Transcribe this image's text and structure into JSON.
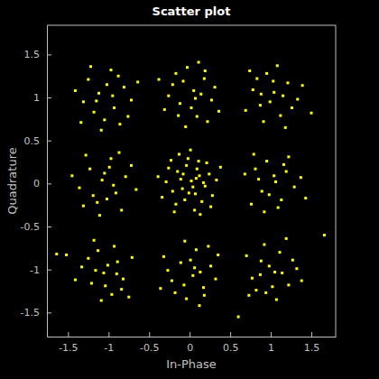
{
  "chart_data": {
    "type": "scatter",
    "title": "Scatter plot",
    "x_label": "In-Phase",
    "y_label": "Quadrature",
    "color": "#ffff00",
    "marker": "square",
    "xlim": [
      -1.76,
      1.8
    ],
    "ylim": [
      -1.78,
      1.84
    ],
    "xticks": [
      -1.5,
      -1,
      -0.5,
      0,
      0.5,
      1,
      1.5
    ],
    "yticks": [
      -1.5,
      -1,
      -0.5,
      0,
      0.5,
      1,
      1.5
    ],
    "grid": false,
    "x": [
      -1.12,
      -0.93,
      -1.25,
      -0.81,
      -1.05,
      -1.31,
      -0.97,
      -0.72,
      -1.18,
      -1.02,
      -0.88,
      -1.41,
      -1.09,
      -0.76,
      -1.22,
      -0.95,
      -1.34,
      -0.64,
      -1.15,
      -0.86,
      0.05,
      -0.12,
      0.18,
      -0.21,
      0.09,
      -0.03,
      0.27,
      -0.31,
      0.14,
      -0.08,
      0.22,
      -0.17,
      0.31,
      0.02,
      -0.26,
      0.11,
      -0.05,
      0.36,
      -0.38,
      0.07,
      0.19,
      -0.14,
      1.04,
      0.87,
      1.21,
      0.78,
      1.12,
      0.95,
      1.33,
      0.69,
      1.08,
      0.91,
      1.26,
      0.83,
      1.15,
      0.99,
      1.39,
      0.74,
      1.18,
      1.03,
      0.88,
      -1.08,
      -0.91,
      -1.23,
      -0.79,
      -1.14,
      -0.97,
      -1.36,
      -0.84,
      -1.05,
      -1.19,
      -0.72,
      -1.28,
      -0.94,
      -1.11,
      -0.87,
      -1.45,
      -1.02,
      -0.66,
      -1.31,
      -0.99,
      0.02,
      -0.09,
      0.12,
      -0.15,
      0.07,
      -0.04,
      0.19,
      -0.21,
      0.09,
      -0.11,
      0.24,
      -0.06,
      0.15,
      -0.26,
      0.04,
      -0.17,
      0.28,
      -0.02,
      0.11,
      -0.29,
      0.21,
      -0.08,
      0.33,
      -0.34,
      0.06,
      -0.13,
      0.17,
      -0.01,
      0.26,
      -0.23,
      0.38,
      -0.39,
      0.01,
      0.13,
      -0.19,
      0.08,
      1.06,
      0.89,
      1.19,
      0.81,
      1.13,
      0.95,
      1.29,
      0.76,
      1.04,
      1.22,
      0.92,
      1.37,
      0.85,
      1.09,
      0.68,
      1.16,
      0.98,
      1.43,
      0.79,
      -1.06,
      -0.89,
      -1.21,
      -0.82,
      -1.13,
      -0.96,
      -1.33,
      -0.71,
      -1.09,
      -0.93,
      -1.25,
      -0.84,
      -1.16,
      -1.01,
      -1.41,
      -0.75,
      -1.18,
      -1.04,
      -0.9,
      -1.52,
      0.04,
      -0.11,
      0.17,
      -0.22,
      0.08,
      -0.04,
      0.26,
      -0.32,
      0.13,
      -0.07,
      0.23,
      -0.18,
      0.32,
      0.01,
      -0.27,
      0.12,
      -0.06,
      0.35,
      -0.36,
      0.06,
      0.18,
      1.05,
      0.88,
      1.22,
      0.77,
      1.11,
      0.94,
      1.32,
      0.7,
      1.07,
      0.92,
      1.27,
      0.82,
      1.14,
      0.98,
      1.38,
      0.73,
      1.19,
      1.02,
      0.87,
      1.66,
      -1.64,
      1.5,
      0.6
    ],
    "values": [
      1.05,
      0.88,
      1.21,
      1.12,
      0.74,
      0.95,
      1.32,
      0.97,
      0.83,
      1.15,
      1.25,
      1.08,
      0.62,
      0.78,
      1.36,
      1.02,
      0.71,
      1.18,
      0.96,
      0.69,
      1.08,
      0.93,
      1.22,
      1.15,
      0.78,
      1.35,
      0.97,
      0.86,
      1.04,
      1.19,
      0.72,
      1.28,
      1.12,
      0.88,
      1.02,
      1.41,
      0.66,
      0.84,
      1.21,
      0.99,
      1.31,
      0.79,
      1.06,
      0.91,
      1.17,
      1.09,
      0.79,
      1.28,
      0.98,
      0.85,
      1.37,
      0.72,
      0.88,
      1.22,
      1.02,
      0.95,
      1.14,
      1.31,
      0.65,
      1.19,
      1.04,
      0.04,
      -0.11,
      0.17,
      0.08,
      -0.22,
      0.29,
      -0.05,
      -0.31,
      0.12,
      -0.14,
      0.21,
      0.33,
      -0.02,
      -0.37,
      0.36,
      0.09,
      -0.18,
      -0.07,
      -0.26,
      0.19,
      0.03,
      -0.06,
      0.09,
      0.14,
      -0.12,
      0.21,
      -0.03,
      -0.09,
      0.17,
      0.05,
      0.11,
      -0.19,
      -0.21,
      0.18,
      -0.04,
      -0.24,
      -0.14,
      0.29,
      0.26,
      0.02,
      0.24,
      0.11,
      0.04,
      -0.16,
      -0.31,
      0.34,
      0.01,
      -0.11,
      -0.27,
      0.27,
      0.19,
      0.08,
      0.39,
      -0.36,
      -0.33,
      0.06,
      0.02,
      -0.09,
      0.14,
      0.17,
      -0.19,
      0.26,
      -0.04,
      -0.24,
      0.09,
      0.31,
      -0.33,
      0.07,
      0.05,
      -0.28,
      0.11,
      0.22,
      -0.13,
      -0.17,
      0.34,
      -1.04,
      -0.91,
      -1.16,
      -1.11,
      -0.78,
      -1.29,
      -0.97,
      -0.86,
      -1.36,
      -0.73,
      -0.87,
      -1.23,
      -1.01,
      -0.95,
      -1.12,
      -1.32,
      -0.66,
      -1.19,
      -1.05,
      -0.83,
      -1.07,
      -0.92,
      -1.21,
      -1.13,
      -0.77,
      -1.34,
      -0.96,
      -0.85,
      -1.03,
      -1.18,
      -0.73,
      -1.27,
      -1.11,
      -0.89,
      -1.01,
      -1.42,
      -0.67,
      -0.83,
      -1.22,
      -0.98,
      -1.3,
      -1.03,
      -0.9,
      -1.18,
      -1.1,
      -0.8,
      -1.27,
      -0.99,
      -0.84,
      -1.35,
      -0.71,
      -0.89,
      -1.24,
      -1.04,
      -0.96,
      -1.13,
      -1.3,
      -0.64,
      -1.2,
      -1.06,
      -0.6,
      -0.82,
      0.82,
      -1.55
    ]
  }
}
